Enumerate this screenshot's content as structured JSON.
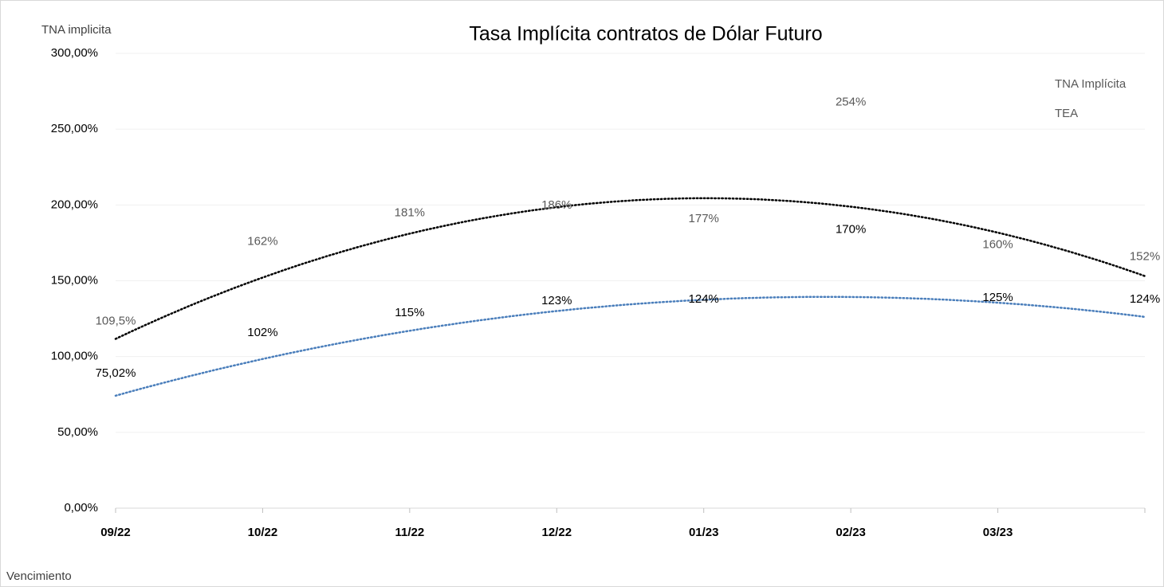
{
  "chart_data": {
    "type": "scatter-trend",
    "title": "Tasa Implícita contratos de Dólar Futuro",
    "y_label": "TNA implicita",
    "x_label": "Vencimiento",
    "categories": [
      "09/22",
      "10/22",
      "11/22",
      "12/22",
      "01/23",
      "02/23",
      "03/23",
      null
    ],
    "series": [
      {
        "name": "TNA Implícita",
        "color": "#4a7ebb",
        "label_color": "#000000",
        "values": [
          75.02,
          102,
          115,
          123,
          124,
          170,
          125,
          124
        ],
        "value_labels": [
          "75,02%",
          "102%",
          "115%",
          "123%",
          "124%",
          "170%",
          "125%",
          "124%"
        ]
      },
      {
        "name": "TEA",
        "color": "#000000",
        "label_color": "#595959",
        "values": [
          109.5,
          162,
          181,
          186,
          177,
          254,
          160,
          152
        ],
        "value_labels": [
          "109,5%",
          "162%",
          "181%",
          "186%",
          "177%",
          "254%",
          "160%",
          "152%"
        ]
      }
    ],
    "trendline": "polynomial",
    "ylim": [
      0,
      300
    ],
    "yticks": [
      {
        "value": 0,
        "label": "0,00%"
      },
      {
        "value": 50,
        "label": "50,00%"
      },
      {
        "value": 100,
        "label": "100,00%"
      },
      {
        "value": 150,
        "label": "150,00%"
      },
      {
        "value": 200,
        "label": "200,00%"
      },
      {
        "value": 250,
        "label": "250,00%"
      },
      {
        "value": 300,
        "label": "300,00%"
      }
    ],
    "grid": true
  }
}
